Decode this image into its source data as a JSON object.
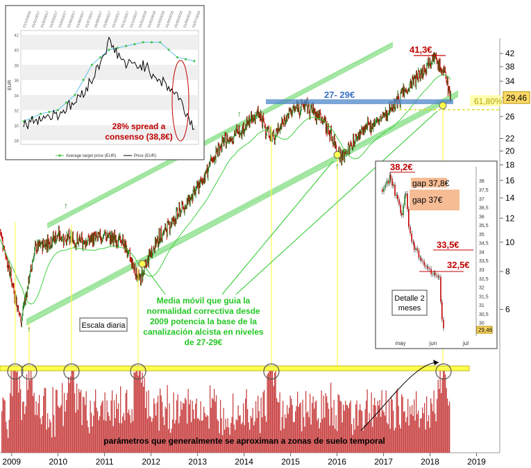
{
  "main": {
    "x_axis_ticks": [
      "2009",
      "2010",
      "2011",
      "2012",
      "2013",
      "2014",
      "2015",
      "2016",
      "2017",
      "2018",
      "2019"
    ],
    "y_axis_ticks": [
      "42",
      "38",
      "34",
      "30",
      "26",
      "22",
      "20",
      "18",
      "16",
      "14",
      "12",
      "10",
      "8",
      "6"
    ],
    "price_badge": "29,46",
    "fib_level": "61,80%",
    "peak_label": "41,3€",
    "support_band_label": "27- 29€",
    "scale_label": "Escala diaria",
    "ma_annotation": [
      "Media móvil que guia la",
      "normalidad correctiva desde",
      "2009 potencia la base de la",
      "canalización alcista en niveles",
      "de 27-29€"
    ],
    "volume_annotation": "parámetros que generalmente se aproximan a zonas de suelo temporal"
  },
  "inset_top": {
    "x_ticks": [
      "01/12/2016",
      "01/01/2017",
      "01/02/2017",
      "01/03/2017",
      "01/04/2017",
      "01/05/2017",
      "01/06/2017",
      "01/07/2017",
      "01/08/2017",
      "01/09/2017",
      "01/10/2017",
      "01/11/2017",
      "01/12/2017",
      "01/01/2018",
      "01/02/2018",
      "01/03/2018",
      "01/04/2018",
      "01/05/2018",
      "01/06/2018",
      "01/07/2018"
    ],
    "y_ticks": [
      "42",
      "40",
      "38",
      "36",
      "34",
      "32",
      "30",
      "28"
    ],
    "ylabel": "EUR",
    "spread_text": [
      "28% spread a",
      "consenso (38,8€)"
    ],
    "legend": [
      "Average target price (EUR)",
      "Price (EUR)"
    ]
  },
  "inset_detail": {
    "title": [
      "Detalle 2",
      "meses"
    ],
    "x_ticks": [
      "may",
      "jun",
      "jul"
    ],
    "y_ticks": [
      "38",
      "37,5",
      "37",
      "36,5",
      "36",
      "35,5",
      "35",
      "34,5",
      "34",
      "33,5",
      "33",
      "32,5",
      "32",
      "31,5",
      "31",
      "30,5",
      "30"
    ],
    "price_badge": "29,46",
    "labels": {
      "high": "38,2€",
      "gap1": "gap 37,8€",
      "gap2": "gap 37€",
      "r1": "33,5€",
      "r2": "32,5€"
    }
  },
  "chart_data": [
    {
      "type": "line",
      "title": "",
      "y_scale": "log",
      "ylim": [
        5,
        44
      ],
      "x": [
        2008.75,
        2009.2,
        2009.5,
        2010.0,
        2010.5,
        2011.0,
        2011.4,
        2011.75,
        2012.1,
        2012.5,
        2013.0,
        2013.5,
        2014.0,
        2014.3,
        2014.6,
        2015.0,
        2015.3,
        2015.7,
        2016.1,
        2016.5,
        2017.0,
        2017.5,
        2017.9,
        2018.05,
        2018.2,
        2018.35,
        2018.45
      ],
      "series": [
        {
          "values": [
            11,
            5.5,
            9.5,
            10.5,
            10,
            10.5,
            10,
            7.5,
            10,
            12,
            15,
            21,
            24,
            26.5,
            22,
            27,
            28.5,
            25.5,
            19,
            23,
            26,
            32,
            38,
            41.3,
            38,
            35,
            29.46
          ]
        }
      ],
      "annotations": [
        "41,3€",
        "27- 29€",
        "61,80%",
        "29,46"
      ]
    },
    {
      "type": "line",
      "title": "",
      "ylabel": "EUR",
      "ylim": [
        28,
        42
      ],
      "x": [
        "01/12/2016",
        "01/02/2017",
        "01/04/2017",
        "01/06/2017",
        "01/08/2017",
        "01/10/2017",
        "01/12/2017",
        "01/02/2018",
        "01/04/2018",
        "01/05/2018",
        "01/06/2018"
      ],
      "series": [
        {
          "name": "Average target price (EUR)",
          "values": [
            30.5,
            31.5,
            32,
            34,
            38,
            40,
            40.5,
            41,
            41,
            39,
            38.5
          ]
        },
        {
          "name": "Price (EUR)",
          "values": [
            30,
            31,
            31.5,
            33,
            36,
            41,
            38,
            38,
            36,
            34,
            29.5
          ]
        }
      ]
    },
    {
      "type": "bar",
      "title": "",
      "x": [
        "may",
        "jun",
        "jul"
      ],
      "ylim": [
        29.4,
        38.4
      ],
      "annotations": [
        "38,2€",
        "gap 37,8€",
        "gap 37€",
        "33,5€",
        "32,5€",
        "29,46"
      ]
    }
  ],
  "colors": {
    "red": "#c00000",
    "green": "#22c722",
    "blue": "#4f87c8",
    "yellow": "#ffff4d",
    "volume": "#c94444",
    "orange": "#f4b183"
  }
}
